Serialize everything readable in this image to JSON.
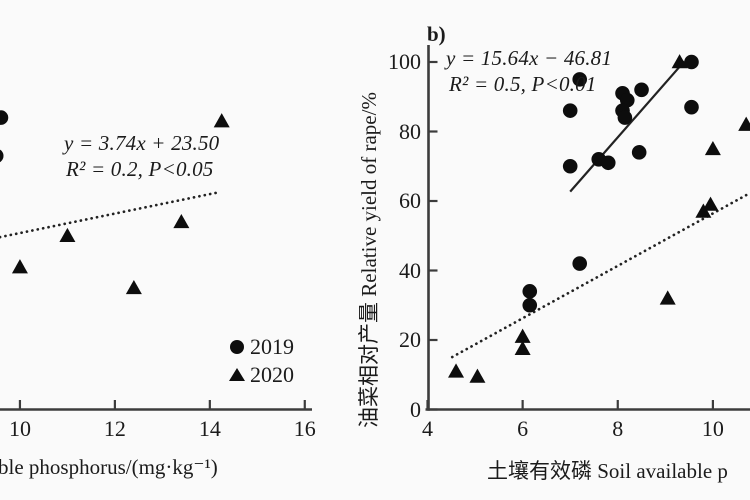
{
  "figure": {
    "background": "#fafafa",
    "ink_color": "#0d0d0d",
    "axis_color": "#3c3c3c",
    "legend": {
      "items": [
        {
          "marker": "circle",
          "label": "2019"
        },
        {
          "marker": "triangle",
          "label": "2020"
        }
      ]
    }
  },
  "chart_data": [
    {
      "id": "panel_a",
      "type": "scatter",
      "note": "left panel cropped by image edge; y-axis not visible, y values estimated on the 0-100 relative-yield scale",
      "equation": "y = 3.74x + 23.50",
      "stats": "R² = 0.2, P<0.05",
      "xlabel": "ble phosphorus/(mg·kg⁻¹)",
      "ylabel": "",
      "x_ticks": [
        10,
        12,
        14,
        16
      ],
      "y_ticks": [],
      "x_range": [
        9.58,
        16.11
      ],
      "y_range": [
        0,
        117
      ],
      "series": [
        {
          "name": "2019",
          "marker": "circle",
          "points": [
            [
              9.6,
              84
            ],
            [
              9.5,
              73
            ]
          ]
        },
        {
          "name": "2020",
          "marker": "triangle",
          "points": [
            [
              14.25,
              83
            ],
            [
              13.4,
              54
            ],
            [
              11.0,
              50
            ],
            [
              10.0,
              41
            ],
            [
              12.4,
              35
            ]
          ]
        }
      ],
      "trendlines": [
        {
          "style": "dotted",
          "x1": 9.58,
          "y1": 49.6,
          "x2": 14.15,
          "y2": 62.4
        }
      ]
    },
    {
      "id": "panel_b",
      "type": "scatter",
      "panel_label": "b)",
      "equation": "y = 15.64x − 46.81",
      "stats": "R² = 0.5, P<0.01",
      "xlabel": "土壤有效磷 Soil available p",
      "ylabel": "油菜相对产量 Relative yield of rape/%",
      "x_ticks": [
        4,
        6,
        8,
        10
      ],
      "y_ticks": [
        0,
        20,
        40,
        60,
        80,
        100
      ],
      "x_range": [
        4,
        10.78
      ],
      "y_range": [
        0,
        104.9
      ],
      "series": [
        {
          "name": "2019",
          "marker": "circle",
          "points": [
            [
              7.2,
              95
            ],
            [
              9.55,
              100
            ],
            [
              8.1,
              91
            ],
            [
              8.5,
              92
            ],
            [
              8.2,
              89
            ],
            [
              8.1,
              86
            ],
            [
              8.15,
              84
            ],
            [
              7.0,
              86
            ],
            [
              9.55,
              87
            ],
            [
              8.45,
              74
            ],
            [
              7.6,
              72
            ],
            [
              7.8,
              71
            ],
            [
              7.0,
              70
            ],
            [
              7.2,
              42
            ],
            [
              6.15,
              34
            ],
            [
              6.15,
              30
            ]
          ]
        },
        {
          "name": "2020",
          "marker": "triangle",
          "points": [
            [
              9.3,
              100
            ],
            [
              10.7,
              82
            ],
            [
              10.0,
              75
            ],
            [
              9.95,
              59
            ],
            [
              9.8,
              57
            ],
            [
              9.05,
              32
            ],
            [
              6.0,
              21
            ],
            [
              6.0,
              17.5
            ],
            [
              4.6,
              11
            ],
            [
              5.05,
              9.5
            ]
          ]
        }
      ],
      "trendlines": [
        {
          "style": "solid",
          "x1": 7.0,
          "y1": 62.7,
          "x2": 9.4,
          "y2": 100.2
        },
        {
          "style": "dotted",
          "x1": 4.52,
          "y1": 15.1,
          "x2": 10.78,
          "y2": 62.3
        }
      ]
    }
  ]
}
